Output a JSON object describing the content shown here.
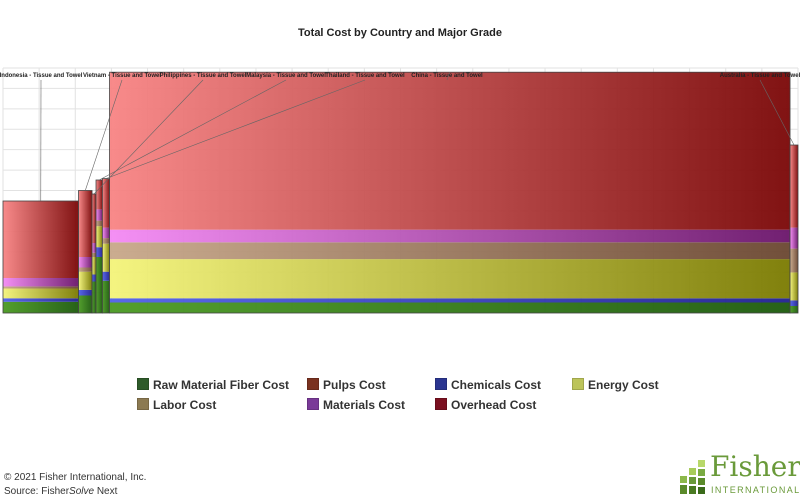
{
  "chart_data": {
    "type": "marimekko",
    "title": "Total Cost by Country and Major Grade",
    "categories": [
      "Indonesia - Tissue and Towel",
      "Vietnam - Tissue and Towel",
      "Philippines - Tissue and Towel",
      "Malaysia - Tissue and Towel",
      "Thailand - Tissue and Towel",
      "China - Tissue and Towel",
      "Australia - Tissue and Towel"
    ],
    "capacity_share": [
      0.095,
      0.017,
      0.005,
      0.008,
      0.009,
      0.856,
      0.01
    ],
    "segments_order": [
      "Raw Material Fiber Cost",
      "Pulps Cost",
      "Chemicals Cost",
      "Energy Cost",
      "Labor Cost",
      "Materials Cost",
      "Overhead Cost"
    ],
    "values": [
      {
        "country": "Indonesia - Tissue and Towel",
        "Raw Material Fiber Cost": 16,
        "Pulps Cost": 0,
        "Chemicals Cost": 5,
        "Energy Cost": 14,
        "Labor Cost": 3,
        "Materials Cost": 12,
        "Overhead Cost": 110
      },
      {
        "country": "Vietnam - Tissue and Towel",
        "Raw Material Fiber Cost": 25,
        "Pulps Cost": 0,
        "Chemicals Cost": 8,
        "Energy Cost": 26,
        "Labor Cost": 6,
        "Materials Cost": 15,
        "Overhead Cost": 95
      },
      {
        "country": "Philippines - Tissue and Towel",
        "Raw Material Fiber Cost": 45,
        "Pulps Cost": 0,
        "Chemicals Cost": 10,
        "Energy Cost": 25,
        "Labor Cost": 6,
        "Materials Cost": 14,
        "Overhead Cost": 70
      },
      {
        "country": "Malaysia - Tissue and Towel",
        "Raw Material Fiber Cost": 80,
        "Pulps Cost": 0,
        "Chemicals Cost": 14,
        "Energy Cost": 30,
        "Labor Cost": 8,
        "Materials Cost": 16,
        "Overhead Cost": 42
      },
      {
        "country": "Thailand - Tissue and Towel",
        "Raw Material Fiber Cost": 46,
        "Pulps Cost": 0,
        "Chemicals Cost": 13,
        "Energy Cost": 40,
        "Labor Cost": 8,
        "Materials Cost": 15,
        "Overhead Cost": 70
      },
      {
        "country": "China - Tissue and Towel",
        "Raw Material Fiber Cost": 15,
        "Pulps Cost": 0,
        "Chemicals Cost": 6,
        "Energy Cost": 56,
        "Labor Cost": 24,
        "Materials Cost": 18,
        "Overhead Cost": 225
      },
      {
        "country": "Australia - Tissue and Towel",
        "Raw Material Fiber Cost": 10,
        "Pulps Cost": 0,
        "Chemicals Cost": 8,
        "Energy Cost": 40,
        "Labor Cost": 34,
        "Materials Cost": 30,
        "Overhead Cost": 118
      }
    ],
    "ylim": [
      0,
      350
    ],
    "grid": true,
    "legend_position": "bottom"
  },
  "colors": {
    "Raw Material Fiber Cost": [
      "#4a9a22",
      "#1c5a0c"
    ],
    "Pulps Cost": [
      "#9a4a32",
      "#6a2418"
    ],
    "Chemicals Cost": [
      "#5060e8",
      "#202090"
    ],
    "Energy Cost": [
      "#f4f47a",
      "#7a7a00"
    ],
    "Labor Cost": [
      "#c8a88a",
      "#6a4630"
    ],
    "Materials Cost": [
      "#f48af4",
      "#6a146a"
    ],
    "Overhead Cost": [
      "#f88484",
      "#7a0606"
    ]
  },
  "legend": [
    {
      "label": "Raw Material Fiber Cost",
      "color": "#2e5b2a"
    },
    {
      "label": "Pulps Cost",
      "color": "#7a3220"
    },
    {
      "label": "Chemicals Cost",
      "color": "#2b3590"
    },
    {
      "label": "Energy Cost",
      "color": "#bcc45a"
    },
    {
      "label": "Labor Cost",
      "color": "#8c7a52"
    },
    {
      "label": "Materials Cost",
      "color": "#7a3a98"
    },
    {
      "label": "Overhead Cost",
      "color": "#7a1020"
    }
  ],
  "footer": {
    "copyright": "© 2021 Fisher International, Inc.",
    "source_prefix": "Source: Fisher",
    "source_italic": "Solve",
    "source_suffix": " Next"
  },
  "logo": {
    "word": "Fisher",
    "sub": "INTERNATIONAL"
  }
}
